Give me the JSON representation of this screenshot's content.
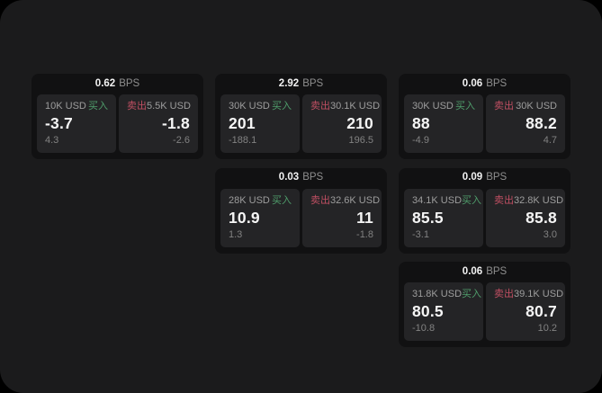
{
  "labels": {
    "bps_unit": "BPS",
    "buy": "买入",
    "sell": "卖出"
  },
  "colors": {
    "page_bg": "#1b1b1c",
    "card_bg": "#111112",
    "panel_bg": "#242426",
    "buy": "#4f9d6b",
    "sell": "#bf4f62",
    "text_secondary": "#9d9d9d",
    "text_muted": "#8f8f8f",
    "text_dim": "#828282"
  },
  "cards": [
    {
      "bps": "0.62",
      "buy": {
        "amount": "10K USD",
        "price": "-3.7",
        "sub": "4.3"
      },
      "sell": {
        "amount": "5.5K USD",
        "price": "-1.8",
        "sub": "-2.6"
      }
    },
    {
      "bps": "2.92",
      "buy": {
        "amount": "30K USD",
        "price": "201",
        "sub": "-188.1"
      },
      "sell": {
        "amount": "30.1K USD",
        "price": "210",
        "sub": "196.5"
      }
    },
    {
      "bps": "0.06",
      "buy": {
        "amount": "30K USD",
        "price": "88",
        "sub": "-4.9"
      },
      "sell": {
        "amount": "30K USD",
        "price": "88.2",
        "sub": "4.7"
      }
    },
    {
      "bps": "0.03",
      "buy": {
        "amount": "28K USD",
        "price": "10.9",
        "sub": "1.3"
      },
      "sell": {
        "amount": "32.6K USD",
        "price": "11",
        "sub": "-1.8"
      }
    },
    {
      "bps": "0.09",
      "buy": {
        "amount": "34.1K USD",
        "price": "85.5",
        "sub": "-3.1"
      },
      "sell": {
        "amount": "32.8K USD",
        "price": "85.8",
        "sub": "3.0"
      }
    },
    {
      "bps": "0.06",
      "buy": {
        "amount": "31.8K USD",
        "price": "80.5",
        "sub": "-10.8"
      },
      "sell": {
        "amount": "39.1K USD",
        "price": "80.7",
        "sub": "10.2"
      }
    }
  ]
}
